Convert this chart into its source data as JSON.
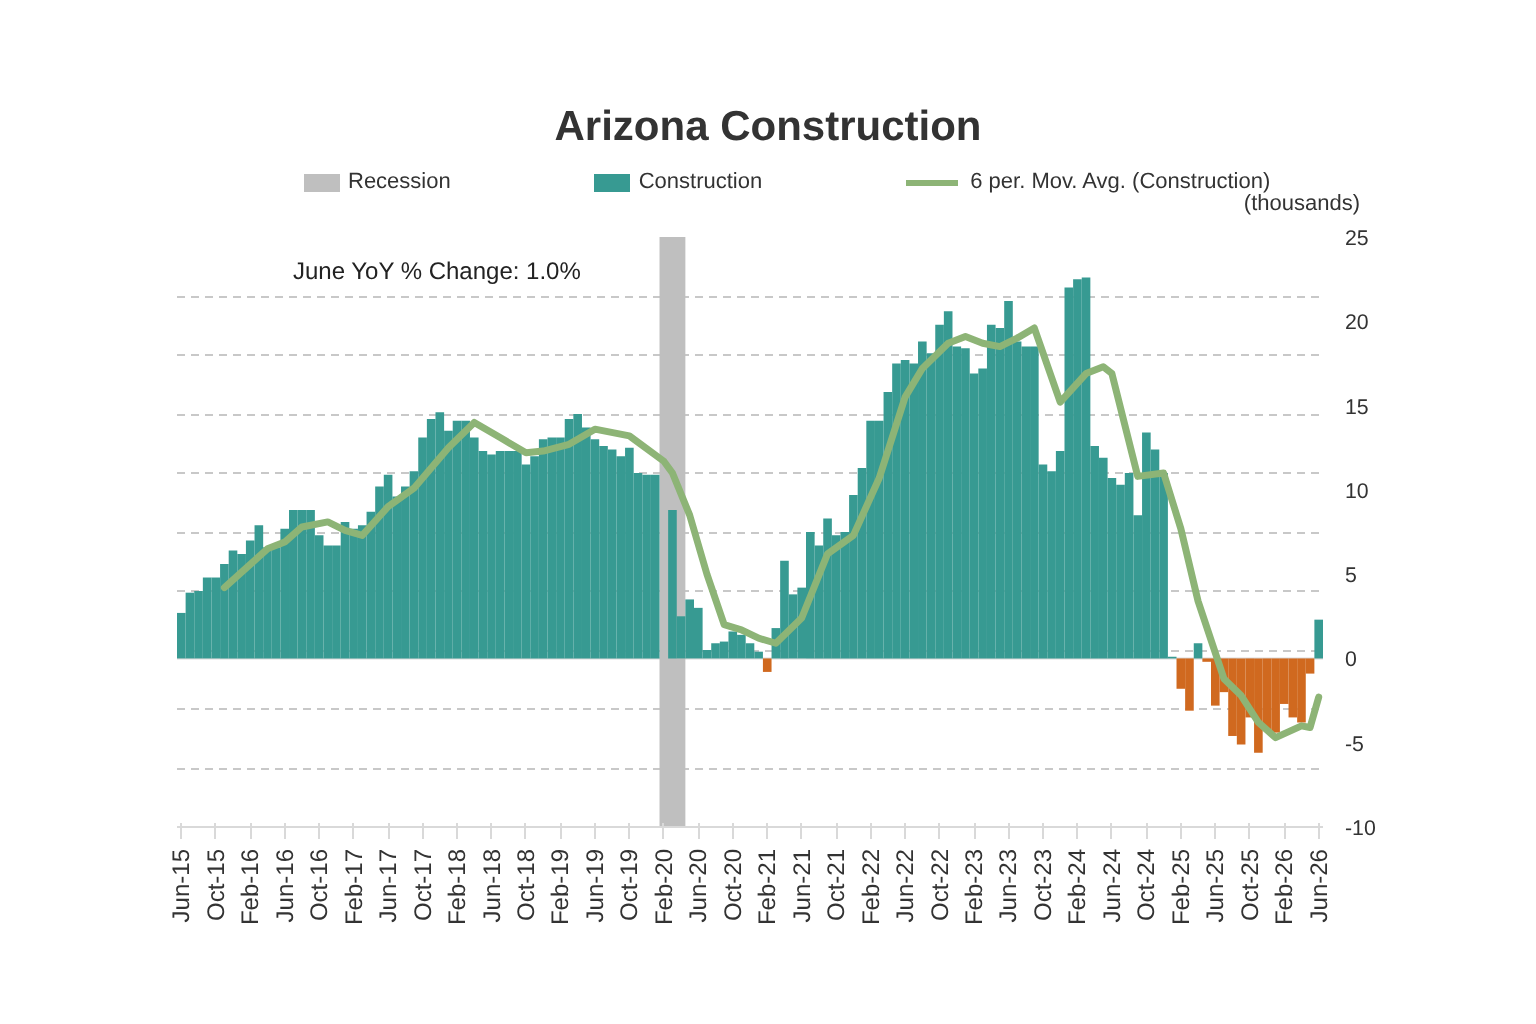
{
  "chart_data": {
    "type": "bar",
    "title": "Arizona Construction",
    "ylabel": "(thousands)",
    "annotations": [
      "June YoY % Change: 1.0%"
    ],
    "x": [
      "2015-06",
      "2015-07",
      "2015-08",
      "2015-09",
      "2015-10",
      "2015-11",
      "2015-12",
      "2016-01",
      "2016-02",
      "2016-03",
      "2016-04",
      "2016-05",
      "2016-06",
      "2016-07",
      "2016-08",
      "2016-09",
      "2016-10",
      "2016-11",
      "2016-12",
      "2017-01",
      "2017-02",
      "2017-03",
      "2017-04",
      "2017-05",
      "2017-06",
      "2017-07",
      "2017-08",
      "2017-09",
      "2017-10",
      "2017-11",
      "2017-12",
      "2018-01",
      "2018-02",
      "2018-03",
      "2018-04",
      "2018-05",
      "2018-06",
      "2018-07",
      "2018-08",
      "2018-09",
      "2018-10",
      "2018-11",
      "2018-12",
      "2019-01",
      "2019-02",
      "2019-03",
      "2019-04",
      "2019-05",
      "2019-06",
      "2019-07",
      "2019-08",
      "2019-09",
      "2019-10",
      "2019-11",
      "2019-12",
      "2020-01",
      "2020-02",
      "2020-03",
      "2020-04",
      "2020-05",
      "2020-06",
      "2020-07",
      "2020-08",
      "2020-09",
      "2020-10",
      "2020-11",
      "2020-12",
      "2021-01",
      "2021-02",
      "2021-03",
      "2021-04",
      "2021-05",
      "2021-06",
      "2021-07",
      "2021-08",
      "2021-09",
      "2021-10",
      "2021-11",
      "2021-12",
      "2022-01",
      "2022-02",
      "2022-03",
      "2022-04",
      "2022-05",
      "2022-06",
      "2022-07",
      "2022-08",
      "2022-09",
      "2022-10",
      "2022-11",
      "2022-12",
      "2023-01",
      "2023-02",
      "2023-03",
      "2023-04",
      "2023-05",
      "2023-06",
      "2023-07",
      "2023-08",
      "2023-09",
      "2023-10",
      "2023-11",
      "2023-12",
      "2024-01",
      "2024-02",
      "2024-03",
      "2024-04",
      "2024-05",
      "2024-06",
      "2024-07",
      "2024-08",
      "2024-09",
      "2024-10",
      "2024-11",
      "2024-12",
      "2025-01",
      "2025-02",
      "2025-03",
      "2025-04",
      "2025-05",
      "2025-06",
      "2025-07",
      "2025-08",
      "2025-09",
      "2025-10",
      "2025-11",
      "2025-12",
      "2026-01",
      "2026-02",
      "2026-03",
      "2026-04",
      "2026-05",
      "2026-06"
    ],
    "series": [
      {
        "name": "Construction",
        "color": "#379a92",
        "values": [
          2.7,
          3.9,
          4.0,
          4.8,
          4.8,
          5.6,
          6.4,
          6.2,
          7.0,
          7.9,
          6.6,
          6.6,
          7.7,
          8.8,
          8.8,
          8.8,
          7.3,
          6.7,
          6.7,
          8.1,
          7.7,
          7.9,
          8.7,
          10.2,
          10.9,
          9.6,
          10.2,
          11.1,
          13.1,
          14.2,
          14.6,
          13.5,
          14.1,
          14.1,
          13.1,
          12.3,
          12.1,
          12.3,
          12.3,
          12.3,
          11.5,
          12.0,
          13.0,
          13.1,
          13.1,
          14.2,
          14.5,
          13.7,
          13.0,
          12.6,
          12.4,
          12.0,
          12.5,
          11.0,
          10.9,
          10.9,
          null,
          8.8,
          2.5,
          3.5,
          3.0,
          0.5,
          0.9,
          1.0,
          1.6,
          1.4,
          0.9,
          0.4,
          -0.8,
          1.8,
          5.8,
          3.8,
          4.2,
          7.5,
          6.7,
          8.3,
          7.3,
          7.5,
          9.7,
          11.3,
          14.1,
          14.1,
          15.8,
          17.5,
          17.7,
          17.5,
          18.8,
          18.1,
          19.8,
          20.6,
          18.5,
          18.4,
          16.9,
          17.2,
          19.8,
          19.6,
          21.2,
          18.8,
          18.5,
          18.5,
          11.5,
          11.1,
          12.3,
          22.0,
          22.5,
          22.6,
          12.6,
          11.9,
          10.7,
          10.3,
          11.0,
          8.5,
          13.4,
          12.4,
          11.0,
          0.1,
          -1.8,
          -3.1,
          0.9,
          -0.2,
          -2.8,
          -2.0,
          -4.6,
          -5.1,
          -3.5,
          -5.6,
          -4.2,
          -4.4,
          -2.7,
          -3.5,
          -3.8,
          -0.9,
          2.3
        ],
        "colors": [
          "#379a92",
          "#379a92",
          "#379a92",
          "#379a92",
          "#379a92",
          "#379a92",
          "#379a92",
          "#379a92",
          "#379a92",
          "#379a92",
          "#379a92",
          "#379a92",
          "#379a92",
          "#379a92",
          "#379a92",
          "#379a92",
          "#379a92",
          "#379a92",
          "#379a92",
          "#379a92",
          "#379a92",
          "#379a92",
          "#379a92",
          "#379a92",
          "#379a92",
          "#379a92",
          "#379a92",
          "#379a92",
          "#379a92",
          "#379a92",
          "#379a92",
          "#379a92",
          "#379a92",
          "#379a92",
          "#379a92",
          "#379a92",
          "#379a92",
          "#379a92",
          "#379a92",
          "#379a92",
          "#379a92",
          "#379a92",
          "#379a92",
          "#379a92",
          "#379a92",
          "#379a92",
          "#379a92",
          "#379a92",
          "#379a92",
          "#379a92",
          "#379a92",
          "#379a92",
          "#379a92",
          "#379a92",
          "#379a92",
          "#379a92",
          "#379a92",
          "#379a92",
          "#379a92",
          "#379a92",
          "#379a92",
          "#379a92",
          "#379a92",
          "#379a92",
          "#379a92",
          "#379a92",
          "#379a92",
          "#379a92",
          "#d0691f",
          "#379a92",
          "#379a92",
          "#379a92",
          "#379a92",
          "#379a92",
          "#379a92",
          "#379a92",
          "#379a92",
          "#379a92",
          "#379a92",
          "#379a92",
          "#379a92",
          "#379a92",
          "#379a92",
          "#379a92",
          "#379a92",
          "#379a92",
          "#379a92",
          "#379a92",
          "#379a92",
          "#379a92",
          "#379a92",
          "#379a92",
          "#379a92",
          "#379a92",
          "#379a92",
          "#379a92",
          "#379a92",
          "#379a92",
          "#379a92",
          "#379a92",
          "#379a92",
          "#379a92",
          "#379a92",
          "#379a92",
          "#379a92",
          "#379a92",
          "#379a92",
          "#379a92",
          "#379a92",
          "#379a92",
          "#379a92",
          "#379a92",
          "#379a92",
          "#379a92",
          "#379a92",
          "#379a92",
          "#d0691f",
          "#d0691f",
          "#379a92",
          "#d0691f",
          "#d0691f",
          "#d0691f",
          "#d0691f",
          "#d0691f",
          "#d0691f",
          "#d0691f",
          "#d0691f",
          "#d0691f",
          "#d0691f",
          "#d0691f",
          "#d0691f",
          "#d0691f",
          "#379a92"
        ]
      },
      {
        "name": "6 per. Mov. Avg. (Construction)",
        "type": "line",
        "color": "#8db476",
        "x": [
          "2015-11",
          "2016-04",
          "2016-06",
          "2016-08",
          "2016-11",
          "2017-01",
          "2017-03",
          "2017-06",
          "2017-09",
          "2018-01",
          "2018-04",
          "2018-07",
          "2018-10",
          "2018-12",
          "2019-03",
          "2019-06",
          "2019-10",
          "2020-02",
          "2020-03",
          "2020-05",
          "2020-07",
          "2020-09",
          "2020-11",
          "2021-01",
          "2021-03",
          "2021-06",
          "2021-09",
          "2021-12",
          "2022-03",
          "2022-06",
          "2022-08",
          "2022-11",
          "2023-01",
          "2023-03",
          "2023-05",
          "2023-07",
          "2023-09",
          "2023-12",
          "2024-03",
          "2024-05",
          "2024-06",
          "2024-09",
          "2024-12",
          "2025-02",
          "2025-04",
          "2025-07",
          "2025-09",
          "2025-11",
          "2026-01",
          "2026-04",
          "2026-05",
          "2026-06"
        ],
        "values": [
          4.2,
          6.5,
          6.9,
          7.8,
          8.1,
          7.6,
          7.3,
          9.0,
          10.1,
          12.5,
          14.0,
          13.1,
          12.2,
          12.3,
          12.7,
          13.6,
          13.2,
          11.7,
          11.0,
          8.5,
          5.0,
          2.0,
          1.7,
          1.2,
          0.9,
          2.4,
          6.2,
          7.3,
          10.7,
          15.5,
          17.2,
          18.7,
          19.1,
          18.7,
          18.5,
          19.0,
          19.6,
          15.2,
          16.9,
          17.3,
          16.9,
          10.8,
          11.0,
          7.7,
          3.4,
          -1.2,
          -2.2,
          -3.8,
          -4.7,
          -4.0,
          -4.1,
          -2.3
        ]
      }
    ],
    "bands": [
      {
        "axis": "x",
        "from": "2020-02",
        "to": "2020-04",
        "label": "Recession",
        "color": "#bfbfbf"
      }
    ],
    "xlim": [
      "2015-05-16",
      "2026-06-16"
    ],
    "xticks": [
      {
        "value": "2015-06",
        "label": "Jun-15"
      },
      {
        "value": "2015-10",
        "label": "Oct-15"
      },
      {
        "value": "2016-02",
        "label": "Feb-16"
      },
      {
        "value": "2016-06",
        "label": "Jun-16"
      },
      {
        "value": "2016-10",
        "label": "Oct-16"
      },
      {
        "value": "2017-02",
        "label": "Feb-17"
      },
      {
        "value": "2017-06",
        "label": "Jun-17"
      },
      {
        "value": "2017-10",
        "label": "Oct-17"
      },
      {
        "value": "2018-02",
        "label": "Feb-18"
      },
      {
        "value": "2018-06",
        "label": "Jun-18"
      },
      {
        "value": "2018-10",
        "label": "Oct-18"
      },
      {
        "value": "2019-02",
        "label": "Feb-19"
      },
      {
        "value": "2019-06",
        "label": "Jun-19"
      },
      {
        "value": "2019-10",
        "label": "Oct-19"
      },
      {
        "value": "2020-02",
        "label": "Feb-20"
      },
      {
        "value": "2020-06",
        "label": "Jun-20"
      },
      {
        "value": "2020-10",
        "label": "Oct-20"
      },
      {
        "value": "2021-02",
        "label": "Feb-21"
      },
      {
        "value": "2021-06",
        "label": "Jun-21"
      },
      {
        "value": "2021-10",
        "label": "Oct-21"
      },
      {
        "value": "2022-02",
        "label": "Feb-22"
      },
      {
        "value": "2022-06",
        "label": "Jun-22"
      },
      {
        "value": "2022-10",
        "label": "Oct-22"
      },
      {
        "value": "2023-02",
        "label": "Feb-23"
      },
      {
        "value": "2023-06",
        "label": "Jun-23"
      },
      {
        "value": "2023-10",
        "label": "Oct-23"
      },
      {
        "value": "2024-02",
        "label": "Feb-24"
      },
      {
        "value": "2024-06",
        "label": "Jun-24"
      },
      {
        "value": "2024-10",
        "label": "Oct-24"
      },
      {
        "value": "2025-02",
        "label": "Feb-25"
      },
      {
        "value": "2025-06",
        "label": "Jun-25"
      },
      {
        "value": "2025-10",
        "label": "Oct-25"
      },
      {
        "value": "2026-02",
        "label": "Feb-26"
      },
      {
        "value": "2026-06",
        "label": "Jun-26"
      }
    ],
    "ylim": [
      -10,
      25
    ],
    "yticks": [
      25,
      {
        "value": 21.5,
        "label": null
      },
      20,
      {
        "value": 18,
        "label": null
      },
      15,
      {
        "value": 14.5,
        "label": null
      },
      {
        "value": 11,
        "label": null
      },
      10,
      {
        "value": 7.5,
        "label": null
      },
      5,
      {
        "value": 4,
        "label": null
      },
      {
        "value": 0.5,
        "label": null
      },
      0,
      {
        "value": -3,
        "label": null
      },
      -5,
      {
        "value": -6.5,
        "label": null
      },
      -10
    ],
    "grid": "y",
    "legend": "top"
  }
}
